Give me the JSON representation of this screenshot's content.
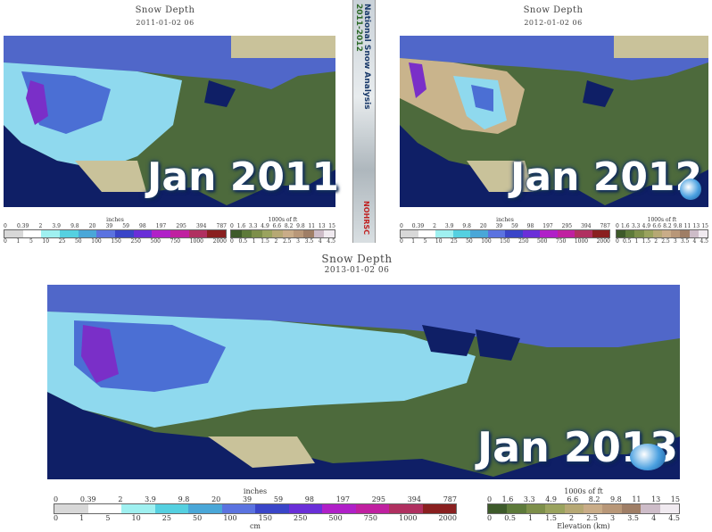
{
  "panels": {
    "p2011": {
      "title": "Snow Depth",
      "date": "2011-01-02 06",
      "overlay": "Jan 2011"
    },
    "p2012": {
      "title": "Snow Depth",
      "date": "2012-01-02 06",
      "overlay": "Jan 2012"
    },
    "p2013": {
      "title": "Snow Depth",
      "date": "2013-01-02 06",
      "overlay": "Jan 2013"
    }
  },
  "center_strip": {
    "title": "National Snow Analysis",
    "years": "2011-2012",
    "logo": "NOHRSC"
  },
  "legend": {
    "depth_unit_top": "inches",
    "depth_unit_bottom": "cm",
    "depth_inches": [
      "0",
      "0.39",
      "2",
      "3.9",
      "9.8",
      "20",
      "39",
      "59",
      "98",
      "197",
      "295",
      "394",
      "787"
    ],
    "depth_cm": [
      "0",
      "1",
      "5",
      "10",
      "25",
      "50",
      "100",
      "150",
      "250",
      "500",
      "750",
      "1000",
      "2000"
    ],
    "depth_colors": [
      "#d8d8d8",
      "#ffffff",
      "#9ff0f0",
      "#55d0e0",
      "#4aa7d8",
      "#5b73e0",
      "#3a45c8",
      "#6a2fd8",
      "#b020c8",
      "#c020a0",
      "#b03060",
      "#8a2020"
    ],
    "elev_unit_top": "1000s of ft",
    "elev_unit_bottom": "Elevation (km)",
    "elev_ft": [
      "0",
      "1.6",
      "3.3",
      "4.9",
      "6.6",
      "8.2",
      "9.8",
      "11",
      "13",
      "15"
    ],
    "elev_km": [
      "0",
      "0.5",
      "1",
      "1.5",
      "2",
      "2.5",
      "3",
      "3.5",
      "4",
      "4.5"
    ],
    "elev_colors": [
      "#3d5a2a",
      "#5d7a3a",
      "#7d8f4a",
      "#9aa35e",
      "#b6a874",
      "#c9ac88",
      "#b89778",
      "#9f7e66",
      "#cdbcc8",
      "#f0eaf0"
    ]
  },
  "colors": {
    "ocean": "#0f1f66",
    "land": "#4d6a3c",
    "snow_light": "#8fd9ee",
    "snow_mid": "#4b6fd4",
    "snow_deep": "#7a2fc8",
    "canada_blue": "#5067c9",
    "no_data": "#c9c29a"
  }
}
